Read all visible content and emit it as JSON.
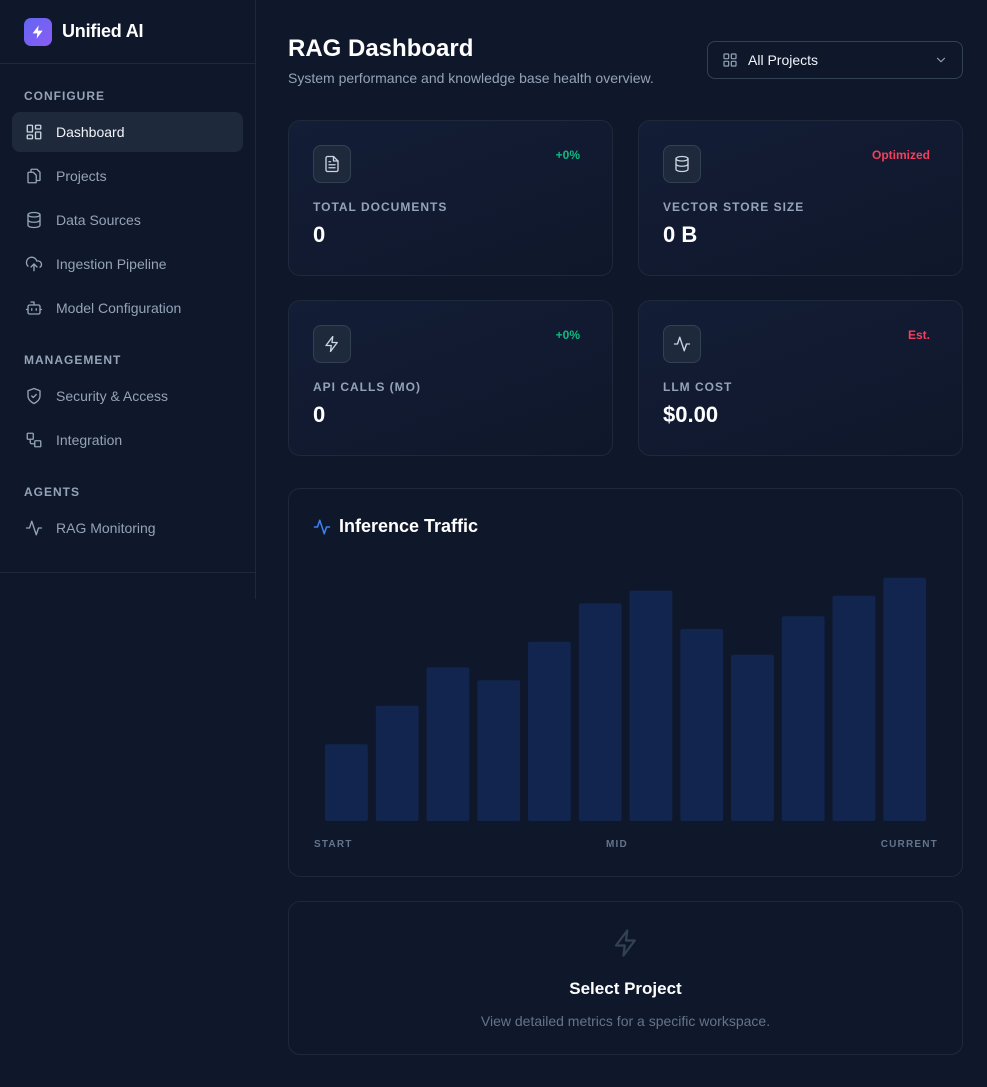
{
  "brand": {
    "name": "Unified AI"
  },
  "sidebar": {
    "sections": [
      {
        "title": "CONFIGURE",
        "items": [
          {
            "label": "Dashboard",
            "icon": "dashboard-icon",
            "active": true
          },
          {
            "label": "Projects",
            "icon": "projects-icon"
          },
          {
            "label": "Data Sources",
            "icon": "database-icon"
          },
          {
            "label": "Ingestion Pipeline",
            "icon": "cloud-upload-icon"
          },
          {
            "label": "Model Configuration",
            "icon": "bot-icon"
          }
        ]
      },
      {
        "title": "MANAGEMENT",
        "items": [
          {
            "label": "Security & Access",
            "icon": "shield-icon"
          },
          {
            "label": "Integration",
            "icon": "integration-icon"
          }
        ]
      },
      {
        "title": "AGENTS",
        "items": [
          {
            "label": "RAG Monitoring",
            "icon": "activity-icon"
          }
        ]
      }
    ]
  },
  "header": {
    "title": "RAG Dashboard",
    "subtitle": "System performance and knowledge base health overview.",
    "project_select": {
      "value": "All Projects"
    }
  },
  "stats": [
    {
      "label": "TOTAL DOCUMENTS",
      "value": "0",
      "badge": "+0%",
      "badge_color": "#10b981",
      "icon": "document-icon"
    },
    {
      "label": "VECTOR STORE SIZE",
      "value": "0 B",
      "badge": "Optimized",
      "badge_color": "#f43f5e",
      "icon": "database-icon"
    },
    {
      "label": "API CALLS (MO)",
      "value": "0",
      "badge": "+0%",
      "badge_color": "#10b981",
      "icon": "bolt-icon"
    },
    {
      "label": "LLM COST",
      "value": "$0.00",
      "badge": "Est.",
      "badge_color": "#f43f5e",
      "icon": "activity-icon"
    }
  ],
  "chart": {
    "title": "Inference Traffic",
    "x_labels": {
      "start": "START",
      "mid": "MID",
      "end": "CURRENT"
    }
  },
  "chart_data": {
    "type": "bar",
    "title": "Inference Traffic",
    "values": [
      30,
      45,
      60,
      55,
      70,
      85,
      90,
      75,
      65,
      80,
      88,
      95
    ],
    "ylim": [
      0,
      100
    ],
    "bar_color": "#12254e",
    "tick_labels": [
      "START",
      "MID",
      "CURRENT"
    ]
  },
  "empty_state": {
    "title": "Select Project",
    "description": "View detailed metrics for a specific workspace."
  }
}
